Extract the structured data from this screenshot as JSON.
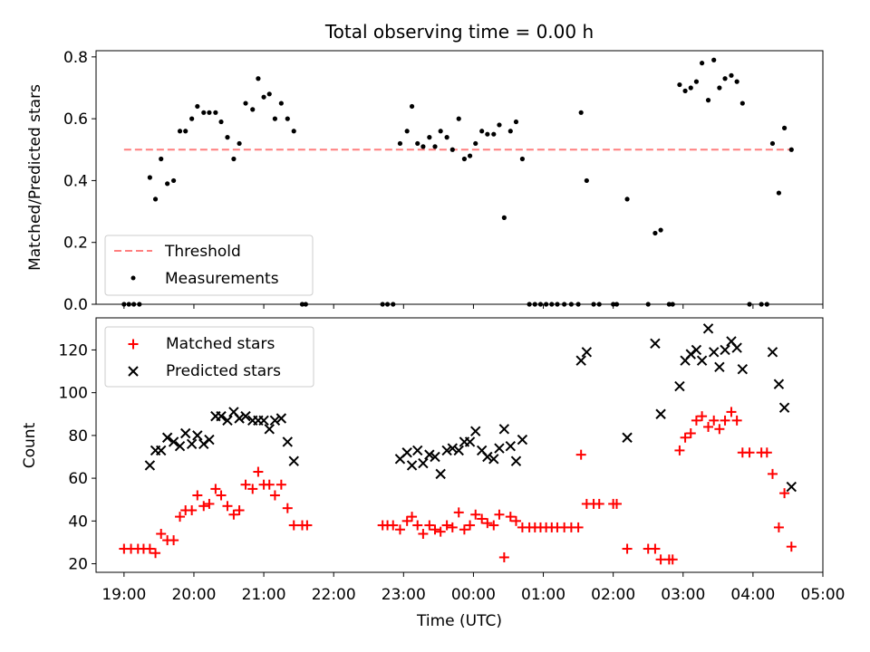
{
  "colors": {
    "threshold": "#ff7f7f",
    "measurements": "#000000",
    "matched": "#ff0000",
    "predicted": "#000000"
  },
  "chart_data": [
    {
      "type": "scatter",
      "title": "Total observing time = 0.00 h",
      "ylabel": "Matched/Predicted stars",
      "xlabel": "",
      "ylim": [
        0,
        0.82
      ],
      "yticks": [
        0.0,
        0.2,
        0.4,
        0.6,
        0.8
      ],
      "ytick_labels": [
        "0.0",
        "0.2",
        "0.4",
        "0.6",
        "0.8"
      ],
      "legend_placement": "lower-left",
      "threshold": {
        "name": "Threshold",
        "value": 0.5,
        "x_start": 19.0,
        "x_end": 28.55,
        "style": "dashed"
      },
      "series": [
        {
          "name": "Measurements",
          "marker": "dot",
          "points": [
            [
              19.0,
              0
            ],
            [
              19.07,
              0
            ],
            [
              19.14,
              0
            ],
            [
              19.22,
              0
            ],
            [
              19.37,
              0.41
            ],
            [
              19.45,
              0.34
            ],
            [
              19.53,
              0.47
            ],
            [
              19.62,
              0.39
            ],
            [
              19.71,
              0.4
            ],
            [
              19.8,
              0.56
            ],
            [
              19.88,
              0.56
            ],
            [
              19.97,
              0.6
            ],
            [
              20.05,
              0.64
            ],
            [
              20.14,
              0.62
            ],
            [
              20.22,
              0.62
            ],
            [
              20.31,
              0.62
            ],
            [
              20.39,
              0.59
            ],
            [
              20.48,
              0.54
            ],
            [
              20.57,
              0.47
            ],
            [
              20.65,
              0.52
            ],
            [
              20.74,
              0.65
            ],
            [
              20.84,
              0.63
            ],
            [
              20.92,
              0.73
            ],
            [
              21.0,
              0.67
            ],
            [
              21.08,
              0.68
            ],
            [
              21.16,
              0.6
            ],
            [
              21.25,
              0.65
            ],
            [
              21.34,
              0.6
            ],
            [
              21.43,
              0.56
            ],
            [
              21.55,
              0
            ],
            [
              21.6,
              0
            ],
            [
              22.7,
              0
            ],
            [
              22.77,
              0
            ],
            [
              22.85,
              0
            ],
            [
              22.95,
              0.52
            ],
            [
              23.05,
              0.56
            ],
            [
              23.12,
              0.64
            ],
            [
              23.2,
              0.52
            ],
            [
              23.28,
              0.51
            ],
            [
              23.37,
              0.54
            ],
            [
              23.45,
              0.51
            ],
            [
              23.53,
              0.56
            ],
            [
              23.62,
              0.54
            ],
            [
              23.7,
              0.5
            ],
            [
              23.79,
              0.6
            ],
            [
              23.87,
              0.47
            ],
            [
              23.95,
              0.48
            ],
            [
              24.03,
              0.52
            ],
            [
              24.12,
              0.56
            ],
            [
              24.2,
              0.55
            ],
            [
              24.29,
              0.55
            ],
            [
              24.37,
              0.58
            ],
            [
              24.44,
              0.28
            ],
            [
              24.53,
              0.56
            ],
            [
              24.61,
              0.59
            ],
            [
              24.7,
              0.47
            ],
            [
              24.8,
              0
            ],
            [
              24.88,
              0
            ],
            [
              24.96,
              0
            ],
            [
              25.04,
              0
            ],
            [
              25.12,
              0
            ],
            [
              25.2,
              0
            ],
            [
              25.3,
              0
            ],
            [
              25.4,
              0
            ],
            [
              25.5,
              0
            ],
            [
              25.54,
              0.62
            ],
            [
              25.62,
              0.4
            ],
            [
              25.72,
              0
            ],
            [
              25.8,
              0
            ],
            [
              26.0,
              0
            ],
            [
              26.05,
              0
            ],
            [
              26.2,
              0.34
            ],
            [
              26.5,
              0
            ],
            [
              26.6,
              0.23
            ],
            [
              26.68,
              0.24
            ],
            [
              26.8,
              0
            ],
            [
              26.85,
              0
            ],
            [
              26.95,
              0.71
            ],
            [
              27.03,
              0.69
            ],
            [
              27.11,
              0.7
            ],
            [
              27.19,
              0.72
            ],
            [
              27.27,
              0.78
            ],
            [
              27.36,
              0.66
            ],
            [
              27.44,
              0.79
            ],
            [
              27.52,
              0.7
            ],
            [
              27.6,
              0.73
            ],
            [
              27.69,
              0.74
            ],
            [
              27.77,
              0.72
            ],
            [
              27.85,
              0.65
            ],
            [
              27.95,
              0
            ],
            [
              28.12,
              0
            ],
            [
              28.2,
              0
            ],
            [
              28.28,
              0.52
            ],
            [
              28.37,
              0.36
            ],
            [
              28.45,
              0.57
            ],
            [
              28.55,
              0.5
            ]
          ]
        }
      ]
    },
    {
      "type": "scatter",
      "title": "",
      "ylabel": "Count",
      "xlabel": "Time (UTC)",
      "ylim": [
        16,
        135
      ],
      "xlim": [
        18.6,
        29.0
      ],
      "xticks": [
        19,
        20,
        21,
        22,
        23,
        24,
        25,
        26,
        27,
        28,
        29
      ],
      "xtick_labels": [
        "19:00",
        "20:00",
        "21:00",
        "22:00",
        "23:00",
        "00:00",
        "01:00",
        "02:00",
        "03:00",
        "04:00",
        "05:00"
      ],
      "yticks": [
        20,
        40,
        60,
        80,
        100,
        120
      ],
      "ytick_labels": [
        "20",
        "40",
        "60",
        "80",
        "100",
        "120"
      ],
      "legend_placement": "upper-left",
      "series": [
        {
          "name": "Matched stars",
          "marker": "plus",
          "points": [
            [
              19.0,
              27
            ],
            [
              19.1,
              27
            ],
            [
              19.2,
              27
            ],
            [
              19.28,
              27
            ],
            [
              19.37,
              27
            ],
            [
              19.45,
              25
            ],
            [
              19.53,
              34
            ],
            [
              19.62,
              31
            ],
            [
              19.71,
              31
            ],
            [
              19.8,
              42
            ],
            [
              19.88,
              45
            ],
            [
              19.97,
              45
            ],
            [
              20.05,
              52
            ],
            [
              20.14,
              47
            ],
            [
              20.22,
              48
            ],
            [
              20.31,
              55
            ],
            [
              20.39,
              52
            ],
            [
              20.48,
              47
            ],
            [
              20.57,
              43
            ],
            [
              20.65,
              45
            ],
            [
              20.74,
              57
            ],
            [
              20.84,
              55
            ],
            [
              20.92,
              63
            ],
            [
              21.0,
              57
            ],
            [
              21.08,
              57
            ],
            [
              21.16,
              52
            ],
            [
              21.25,
              57
            ],
            [
              21.34,
              46
            ],
            [
              21.43,
              38
            ],
            [
              21.55,
              38
            ],
            [
              21.62,
              38
            ],
            [
              22.7,
              38
            ],
            [
              22.77,
              38
            ],
            [
              22.85,
              38
            ],
            [
              22.95,
              36
            ],
            [
              23.05,
              40
            ],
            [
              23.12,
              42
            ],
            [
              23.2,
              38
            ],
            [
              23.28,
              34
            ],
            [
              23.37,
              38
            ],
            [
              23.45,
              36
            ],
            [
              23.53,
              35
            ],
            [
              23.62,
              38
            ],
            [
              23.7,
              37
            ],
            [
              23.79,
              44
            ],
            [
              23.87,
              36
            ],
            [
              23.95,
              38
            ],
            [
              24.03,
              43
            ],
            [
              24.12,
              41
            ],
            [
              24.2,
              39
            ],
            [
              24.29,
              38
            ],
            [
              24.37,
              43
            ],
            [
              24.44,
              23
            ],
            [
              24.53,
              42
            ],
            [
              24.61,
              40
            ],
            [
              24.7,
              37
            ],
            [
              24.8,
              37
            ],
            [
              24.88,
              37
            ],
            [
              24.96,
              37
            ],
            [
              25.04,
              37
            ],
            [
              25.12,
              37
            ],
            [
              25.2,
              37
            ],
            [
              25.3,
              37
            ],
            [
              25.4,
              37
            ],
            [
              25.5,
              37
            ],
            [
              25.54,
              71
            ],
            [
              25.62,
              48
            ],
            [
              25.72,
              48
            ],
            [
              25.8,
              48
            ],
            [
              26.0,
              48
            ],
            [
              26.05,
              48
            ],
            [
              26.2,
              27
            ],
            [
              26.5,
              27
            ],
            [
              26.6,
              27
            ],
            [
              26.68,
              22
            ],
            [
              26.8,
              22
            ],
            [
              26.85,
              22
            ],
            [
              26.95,
              73
            ],
            [
              27.03,
              79
            ],
            [
              27.11,
              81
            ],
            [
              27.19,
              87
            ],
            [
              27.27,
              89
            ],
            [
              27.36,
              84
            ],
            [
              27.44,
              87
            ],
            [
              27.52,
              83
            ],
            [
              27.6,
              87
            ],
            [
              27.69,
              91
            ],
            [
              27.77,
              87
            ],
            [
              27.85,
              72
            ],
            [
              27.95,
              72
            ],
            [
              28.12,
              72
            ],
            [
              28.2,
              72
            ],
            [
              28.28,
              62
            ],
            [
              28.37,
              37
            ],
            [
              28.45,
              53
            ],
            [
              28.55,
              28
            ]
          ]
        },
        {
          "name": "Predicted stars",
          "marker": "x",
          "points": [
            [
              19.37,
              66
            ],
            [
              19.45,
              73
            ],
            [
              19.53,
              73
            ],
            [
              19.62,
              79
            ],
            [
              19.71,
              77
            ],
            [
              19.8,
              75
            ],
            [
              19.88,
              81
            ],
            [
              19.97,
              76
            ],
            [
              20.05,
              80
            ],
            [
              20.14,
              76
            ],
            [
              20.22,
              78
            ],
            [
              20.31,
              89
            ],
            [
              20.39,
              89
            ],
            [
              20.48,
              87
            ],
            [
              20.57,
              91
            ],
            [
              20.65,
              88
            ],
            [
              20.74,
              89
            ],
            [
              20.84,
              87
            ],
            [
              20.92,
              87
            ],
            [
              21.0,
              87
            ],
            [
              21.08,
              83
            ],
            [
              21.16,
              87
            ],
            [
              21.25,
              88
            ],
            [
              21.34,
              77
            ],
            [
              21.43,
              68
            ],
            [
              22.95,
              69
            ],
            [
              23.05,
              72
            ],
            [
              23.12,
              66
            ],
            [
              23.2,
              73
            ],
            [
              23.28,
              67
            ],
            [
              23.37,
              71
            ],
            [
              23.45,
              70
            ],
            [
              23.53,
              62
            ],
            [
              23.62,
              73
            ],
            [
              23.7,
              74
            ],
            [
              23.79,
              73
            ],
            [
              23.87,
              77
            ],
            [
              23.95,
              77
            ],
            [
              24.03,
              82
            ],
            [
              24.12,
              73
            ],
            [
              24.2,
              70
            ],
            [
              24.29,
              69
            ],
            [
              24.37,
              74
            ],
            [
              24.44,
              83
            ],
            [
              24.53,
              75
            ],
            [
              24.61,
              68
            ],
            [
              24.7,
              78
            ],
            [
              25.54,
              115
            ],
            [
              25.62,
              119
            ],
            [
              26.2,
              79
            ],
            [
              26.6,
              123
            ],
            [
              26.68,
              90
            ],
            [
              26.95,
              103
            ],
            [
              27.03,
              115
            ],
            [
              27.11,
              118
            ],
            [
              27.19,
              120
            ],
            [
              27.27,
              115
            ],
            [
              27.36,
              130
            ],
            [
              27.44,
              119
            ],
            [
              27.52,
              112
            ],
            [
              27.6,
              120
            ],
            [
              27.69,
              124
            ],
            [
              27.77,
              121
            ],
            [
              27.85,
              111
            ],
            [
              28.28,
              119
            ],
            [
              28.37,
              104
            ],
            [
              28.45,
              93
            ],
            [
              28.55,
              56
            ]
          ]
        }
      ]
    }
  ]
}
